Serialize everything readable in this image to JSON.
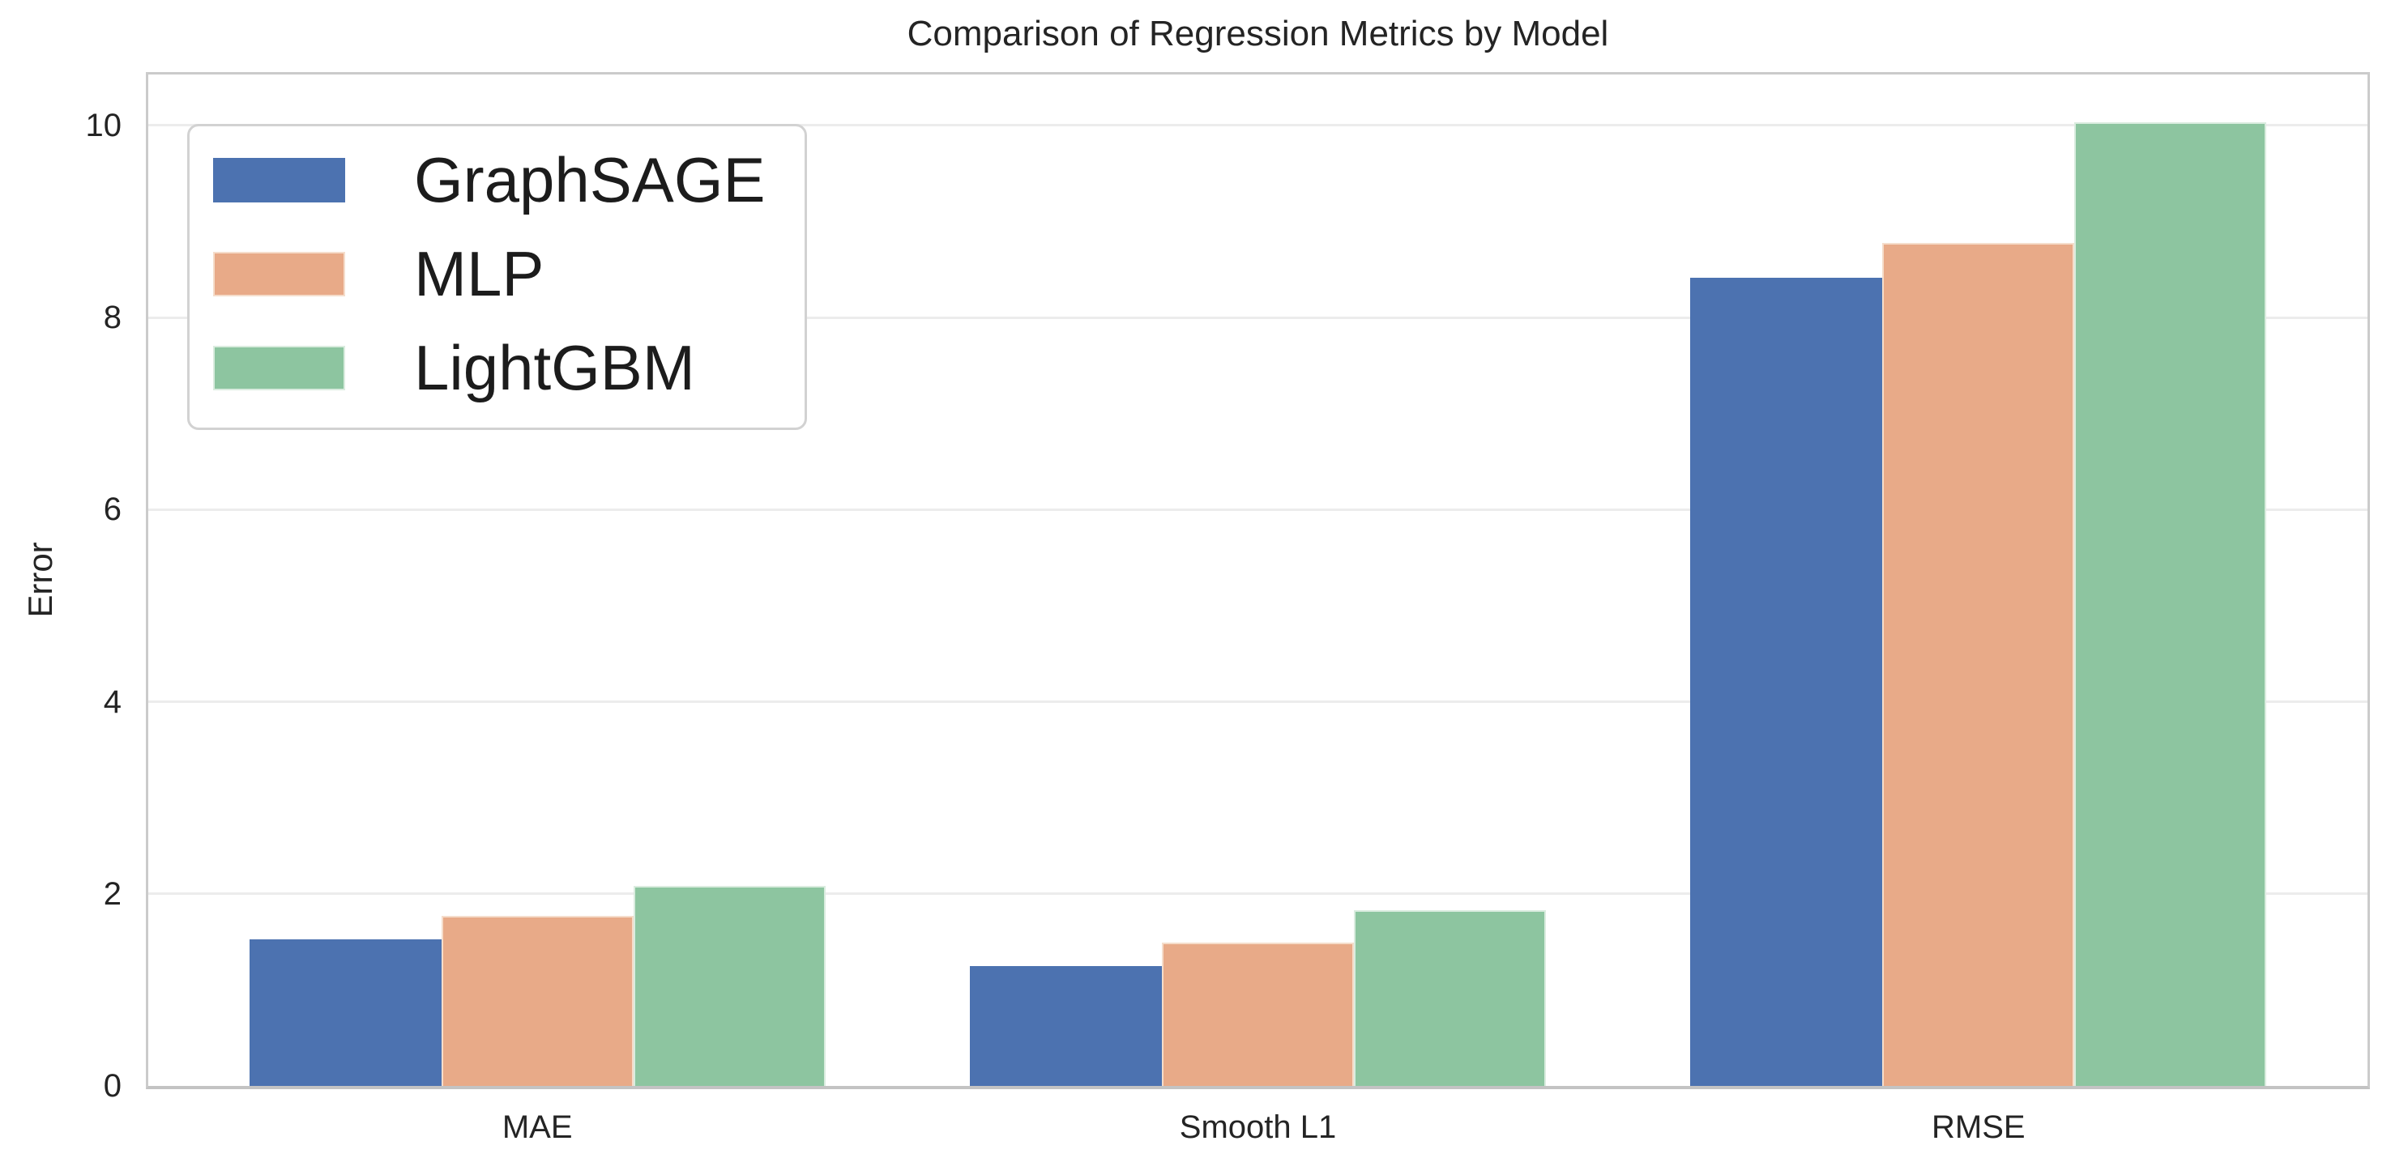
{
  "figure": {
    "title": "Comparison of Regression Metrics by Model",
    "ylabel": "Error"
  },
  "chart_data": {
    "type": "bar",
    "title": "Comparison of Regression Metrics by Model",
    "xlabel": "",
    "ylabel": "Error",
    "categories": [
      "MAE",
      "Smooth L1",
      "RMSE"
    ],
    "series": [
      {
        "name": "GraphSAGE",
        "color": "#4c72b0",
        "edge_color": "#4c72b0",
        "values": [
          1.53,
          1.25,
          8.41
        ]
      },
      {
        "name": "MLP",
        "color": "#e8aa88",
        "edge_color": "#f5ddcb",
        "values": [
          1.77,
          1.49,
          8.78
        ]
      },
      {
        "name": "LightGBM",
        "color": "#8dc5a0",
        "edge_color": "#daecdf",
        "values": [
          2.08,
          1.83,
          10.03
        ]
      }
    ],
    "yticks": [
      0,
      2,
      4,
      6,
      8,
      10
    ],
    "ylim": [
      0,
      10.53
    ],
    "grid": true,
    "legend_position": "upper left",
    "style": {
      "background": "#ffffff",
      "text_color": "#242424",
      "grid_color": "#ececec",
      "spine_color": "#c9c9c9"
    }
  }
}
